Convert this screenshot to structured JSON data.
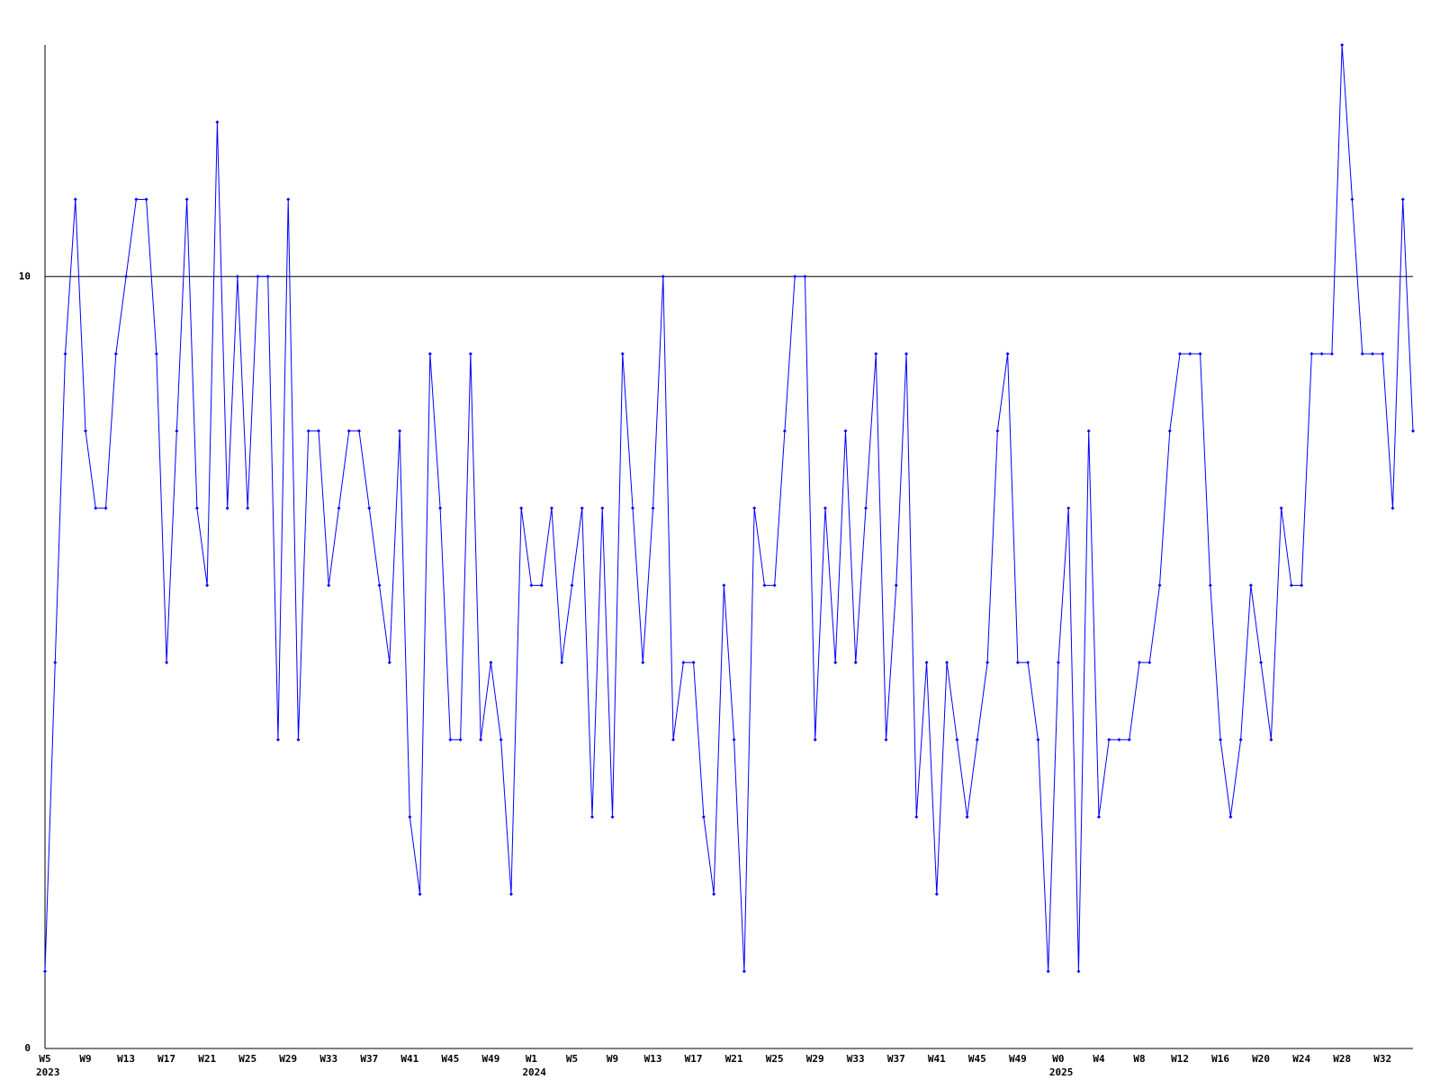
{
  "chart_data": {
    "type": "line",
    "categories": [
      "W5",
      null,
      null,
      null,
      "W9",
      null,
      null,
      null,
      "W13",
      null,
      null,
      null,
      "W17",
      null,
      null,
      null,
      "W21",
      null,
      null,
      null,
      "W25",
      null,
      null,
      null,
      "W29",
      null,
      null,
      null,
      "W33",
      null,
      null,
      null,
      "W37",
      null,
      null,
      null,
      "W41",
      null,
      null,
      null,
      "W45",
      null,
      null,
      null,
      "W49",
      null,
      null,
      null,
      "W1",
      null,
      null,
      null,
      "W5",
      null,
      null,
      null,
      "W9",
      null,
      null,
      null,
      "W13",
      null,
      null,
      null,
      "W17",
      null,
      null,
      null,
      "W21",
      null,
      null,
      null,
      "W25",
      null,
      null,
      null,
      "W29",
      null,
      null,
      null,
      "W33",
      null,
      null,
      null,
      "W37",
      null,
      null,
      null,
      "W41",
      null,
      null,
      null,
      "W45",
      null,
      null,
      null,
      "W49",
      null,
      null,
      null,
      "W0",
      null,
      null,
      null,
      "W4",
      null,
      null,
      null,
      "W8",
      null,
      null,
      null,
      "W12",
      null,
      null,
      null,
      "W16",
      null,
      null,
      null,
      "W20",
      null,
      null,
      null,
      "W24",
      null,
      null,
      null,
      "W28",
      null,
      null,
      null,
      "W32",
      null,
      null,
      null
    ],
    "years": [
      "2023",
      null,
      null,
      null,
      null,
      null,
      null,
      null,
      null,
      null,
      null,
      null,
      null,
      null,
      null,
      null,
      null,
      null,
      null,
      null,
      null,
      null,
      null,
      null,
      null,
      null,
      null,
      null,
      null,
      null,
      null,
      null,
      null,
      null,
      null,
      null,
      null,
      null,
      null,
      null,
      null,
      null,
      null,
      null,
      null,
      null,
      null,
      null,
      "2024",
      null,
      null,
      null,
      null,
      null,
      null,
      null,
      null,
      null,
      null,
      null,
      null,
      null,
      null,
      null,
      null,
      null,
      null,
      null,
      null,
      null,
      null,
      null,
      null,
      null,
      null,
      null,
      null,
      null,
      null,
      null,
      null,
      null,
      null,
      null,
      null,
      null,
      null,
      null,
      null,
      null,
      null,
      null,
      null,
      null,
      null,
      null,
      null,
      null,
      null,
      null,
      "2025",
      null,
      null,
      null,
      null,
      null,
      null,
      null,
      null,
      null,
      null,
      null,
      null,
      null,
      null,
      null,
      null,
      null,
      null,
      null,
      null,
      null,
      null,
      null,
      null,
      null,
      null,
      null,
      null,
      null,
      null,
      null,
      null,
      null,
      null,
      null
    ],
    "values": [
      1,
      5,
      9,
      11,
      8,
      7,
      7,
      9,
      10,
      11,
      11,
      9,
      5,
      8,
      11,
      7,
      6,
      12,
      7,
      10,
      7,
      10,
      10,
      4,
      11,
      4,
      8,
      8,
      6,
      7,
      8,
      8,
      7,
      6,
      5,
      8,
      3,
      2,
      9,
      7,
      4,
      4,
      9,
      4,
      5,
      4,
      2,
      7,
      6,
      6,
      7,
      5,
      6,
      7,
      3,
      7,
      3,
      9,
      7,
      5,
      7,
      10,
      4,
      5,
      5,
      3,
      2,
      6,
      4,
      1,
      7,
      6,
      6,
      8,
      10,
      10,
      4,
      7,
      5,
      8,
      5,
      7,
      9,
      4,
      6,
      9,
      3,
      5,
      2,
      5,
      4,
      3,
      4,
      5,
      8,
      9,
      5,
      5,
      4,
      1,
      5,
      7,
      1,
      8,
      3,
      4,
      4,
      4,
      5,
      5,
      6,
      8,
      9,
      9,
      9,
      6,
      4,
      3,
      4,
      6,
      5,
      4,
      7,
      6,
      6,
      9,
      9,
      9,
      13,
      11,
      9,
      9,
      9,
      7,
      11,
      8
    ],
    "color": "#0000ff",
    "ylim": [
      0,
      13
    ],
    "yticks": [
      0,
      10
    ],
    "grid": true
  }
}
